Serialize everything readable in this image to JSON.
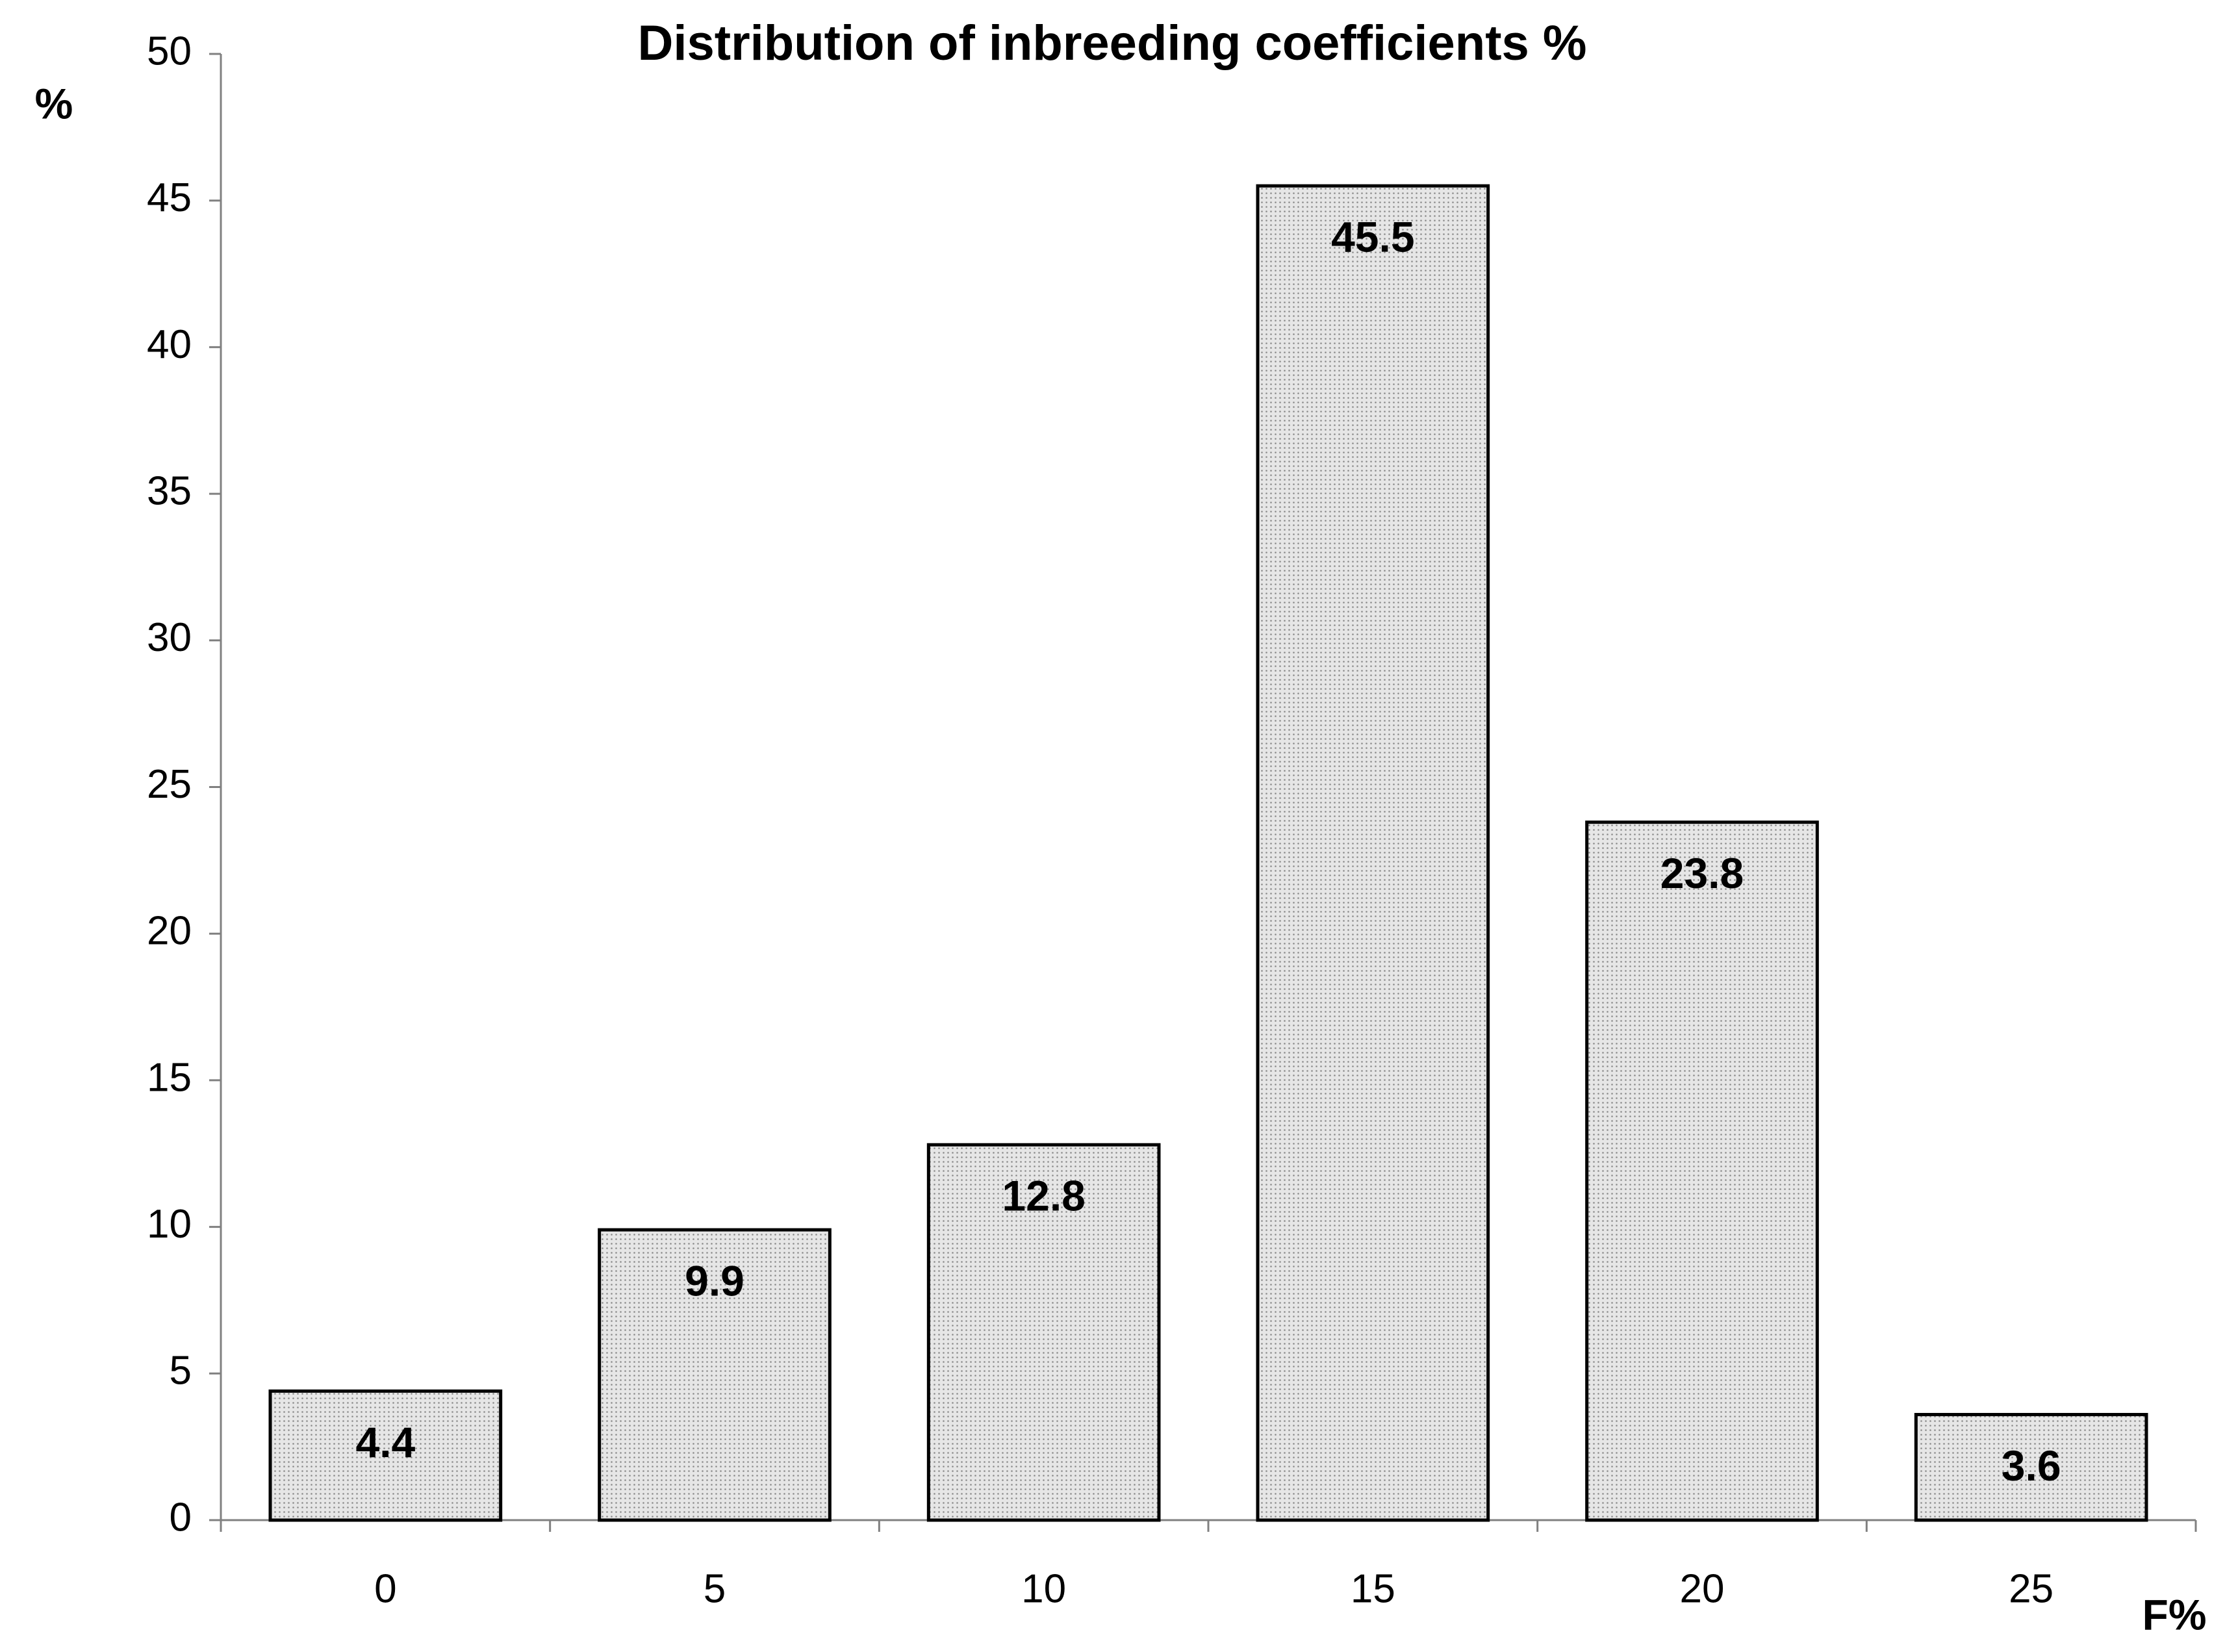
{
  "chart_data": {
    "type": "bar",
    "title": "Distribution of inbreeding coefficients %",
    "y_label": "%",
    "x_label": "F%",
    "categories": [
      "0",
      "5",
      "10",
      "15",
      "20",
      "25"
    ],
    "values": [
      4.4,
      9.9,
      12.8,
      45.5,
      23.8,
      3.6
    ],
    "color": "#e6e6e6",
    "ylim": [
      0,
      50
    ],
    "yticks": [
      0,
      5,
      10,
      15,
      20,
      25,
      30,
      35,
      40,
      45,
      50
    ],
    "grid": false,
    "data_labels": true
  }
}
